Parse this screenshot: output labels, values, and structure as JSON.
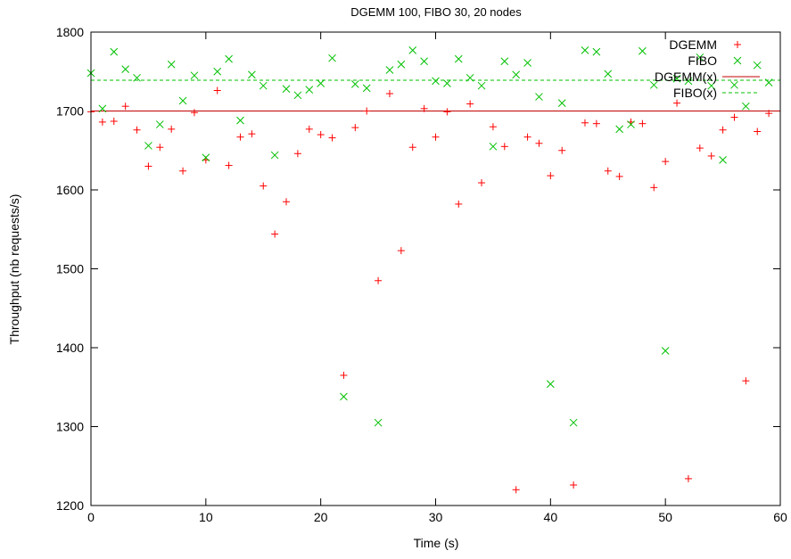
{
  "chart_data": {
    "type": "scatter",
    "title": "DGEMM 100, FIBO 30, 20 nodes",
    "xlabel": "Time (s)",
    "ylabel": "Throughput (nb requests/s)",
    "xlim": [
      0,
      60
    ],
    "ylim": [
      1200,
      1800
    ],
    "xticks": [
      0,
      10,
      20,
      30,
      40,
      50,
      60
    ],
    "yticks": [
      1200,
      1300,
      1400,
      1500,
      1600,
      1700,
      1800
    ],
    "grid": false,
    "legend_position": "top-right",
    "series": [
      {
        "name": "DGEMM",
        "marker": "plus",
        "color": "#ff0000",
        "x": [
          0,
          1,
          2,
          3,
          4,
          5,
          6,
          7,
          8,
          9,
          10,
          11,
          12,
          13,
          14,
          15,
          16,
          17,
          18,
          19,
          20,
          21,
          22,
          23,
          24,
          25,
          26,
          27,
          28,
          29,
          30,
          31,
          32,
          33,
          34,
          35,
          36,
          37,
          38,
          39,
          40,
          41,
          42,
          43,
          44,
          45,
          46,
          47,
          48,
          49,
          50,
          51,
          52,
          53,
          54,
          55,
          56,
          57,
          58,
          59
        ],
        "y": [
          1699,
          1686,
          1687,
          1706,
          1676,
          1630,
          1654,
          1677,
          1624,
          1698,
          1638,
          1726,
          1631,
          1667,
          1671,
          1605,
          1544,
          1585,
          1646,
          1677,
          1670,
          1666,
          1365,
          1679,
          1700,
          1485,
          1722,
          1523,
          1654,
          1703,
          1667,
          1699,
          1582,
          1709,
          1609,
          1680,
          1655,
          1220,
          1667,
          1659,
          1618,
          1650,
          1226,
          1685,
          1684,
          1624,
          1617,
          1686,
          1684,
          1603,
          1636,
          1710,
          1234,
          1653,
          1643,
          1676,
          1692,
          1358,
          1674,
          1697
        ]
      },
      {
        "name": "FIBO",
        "marker": "cross",
        "color": "#00c000",
        "x": [
          0,
          1,
          2,
          3,
          4,
          5,
          6,
          7,
          8,
          9,
          10,
          11,
          12,
          13,
          14,
          15,
          16,
          17,
          18,
          19,
          20,
          21,
          22,
          23,
          24,
          25,
          26,
          27,
          28,
          29,
          30,
          31,
          32,
          33,
          34,
          35,
          36,
          37,
          38,
          39,
          40,
          41,
          42,
          43,
          44,
          45,
          46,
          47,
          48,
          49,
          50,
          51,
          52,
          53,
          54,
          55,
          56,
          57,
          58,
          59
        ],
        "y": [
          1748,
          1703,
          1775,
          1753,
          1742,
          1656,
          1683,
          1759,
          1713,
          1745,
          1641,
          1750,
          1766,
          1688,
          1746,
          1732,
          1644,
          1728,
          1720,
          1727,
          1735,
          1767,
          1338,
          1734,
          1729,
          1305,
          1752,
          1759,
          1777,
          1763,
          1738,
          1735,
          1766,
          1742,
          1732,
          1655,
          1763,
          1746,
          1761,
          1718,
          1354,
          1710,
          1305,
          1777,
          1775,
          1747,
          1677,
          1683,
          1776,
          1733,
          1396,
          1741,
          1738,
          1768,
          1732,
          1638,
          1733,
          1706,
          1758,
          1736
        ]
      },
      {
        "name": "DGEMM(x)",
        "type": "line",
        "style": "solid",
        "color": "#c00000",
        "y": 1700
      },
      {
        "name": "FIBO(x)",
        "type": "line",
        "style": "dashed",
        "color": "#00c000",
        "y": 1739
      }
    ]
  }
}
